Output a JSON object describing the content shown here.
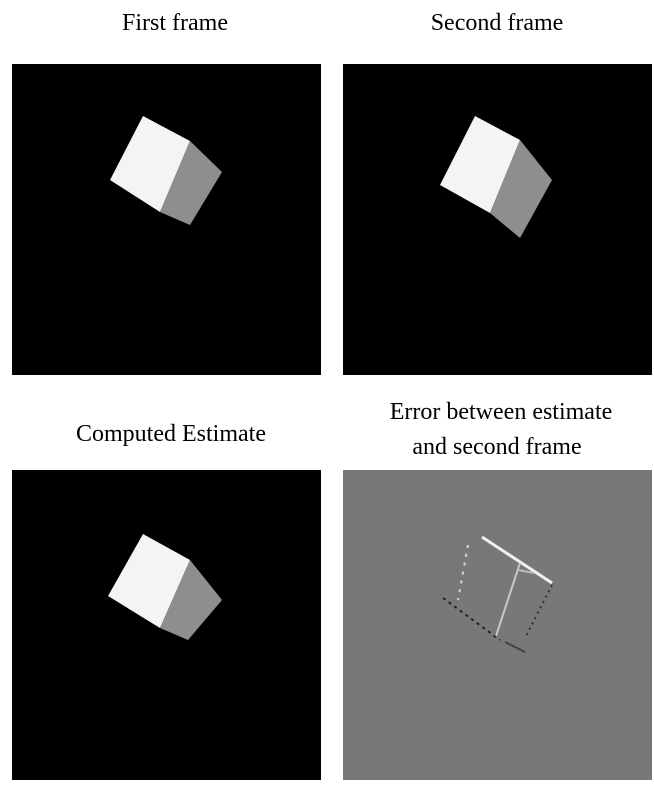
{
  "panels": [
    {
      "title": "First frame"
    },
    {
      "title": "Second frame"
    },
    {
      "title": "Computed Estimate"
    },
    {
      "title": [
        "Error between estimate",
        "and second frame"
      ]
    }
  ]
}
